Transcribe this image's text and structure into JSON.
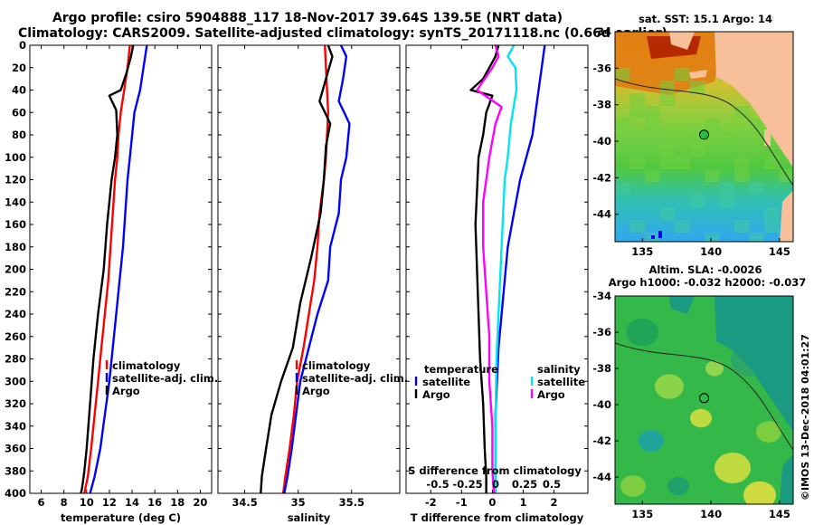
{
  "header": {
    "line1": "Argo profile: csiro 5904888_117 18-Nov-2017 39.64S 139.5E (NRT data)",
    "line2": "Climatology: CARS2009. Satellite-adjusted climatology: synTS_20171118.nc (0.66d earlier)"
  },
  "maps": {
    "sst_title": "sat. SST: 15.1 Argo: 14",
    "sla_title1": "Altim. SLA: -0.0026",
    "sla_title2": "Argo h1000: -0.032 h2000: -0.037",
    "credit": "©IMOS 13-Dec-2018 04:01:27"
  },
  "colors": {
    "climatology": "#ff0000",
    "satellite": "#0000ff",
    "argo": "#000000",
    "s_satellite": "#00e5ee",
    "s_argo": "#ff00ff"
  },
  "chart_data": [
    {
      "type": "line",
      "name": "temperature",
      "xlabel": "temperature (deg C)",
      "ylabel": "",
      "xlim": [
        5,
        21
      ],
      "ylim": [
        400,
        0
      ],
      "xticks": [
        6,
        8,
        10,
        12,
        14,
        16,
        18,
        20
      ],
      "xtick_labels": [
        "6",
        "8",
        "10",
        "12",
        "14",
        "16",
        "18",
        "20"
      ],
      "yticks": [
        0,
        20,
        40,
        60,
        80,
        100,
        120,
        140,
        160,
        180,
        200,
        220,
        240,
        260,
        280,
        300,
        320,
        340,
        360,
        380,
        400
      ],
      "ytick_labels": [
        "0",
        "20",
        "40",
        "60",
        "80",
        "100",
        "120",
        "140",
        "160",
        "180",
        "200",
        "220",
        "240",
        "260",
        "280",
        "300",
        "320",
        "340",
        "360",
        "380",
        "400"
      ],
      "legend": [
        "climatology",
        "satellite-adj. clim.",
        "Argo"
      ],
      "series": [
        {
          "name": "climatology",
          "color": "#ff0000",
          "x": [
            13.8,
            13.6,
            13.3,
            13.0,
            12.8,
            12.7,
            12.5,
            12.3,
            12.1,
            11.9,
            11.6,
            11.3,
            11.0,
            10.7,
            10.4,
            10.1,
            9.8
          ],
          "y": [
            0,
            20,
            40,
            60,
            80,
            100,
            120,
            150,
            180,
            210,
            240,
            270,
            300,
            330,
            360,
            385,
            400
          ]
        },
        {
          "name": "satellite-adj. clim.",
          "color": "#0000ff",
          "x": [
            15.3,
            15.0,
            14.7,
            14.2,
            14.0,
            13.8,
            13.6,
            13.4,
            13.2,
            12.9,
            12.6,
            12.3,
            12.0,
            11.6,
            11.2,
            10.7,
            10.3
          ],
          "y": [
            0,
            20,
            40,
            60,
            80,
            100,
            120,
            150,
            180,
            210,
            240,
            270,
            300,
            330,
            360,
            385,
            400
          ]
        },
        {
          "name": "Argo",
          "color": "#000000",
          "x": [
            14.1,
            13.9,
            13.5,
            13.0,
            12.0,
            12.6,
            12.7,
            12.5,
            12.2,
            11.8,
            11.5,
            11.0,
            10.6,
            10.3,
            10.0,
            9.8,
            9.6,
            9.5
          ],
          "y": [
            0,
            10,
            25,
            40,
            45,
            58,
            80,
            100,
            120,
            160,
            200,
            240,
            280,
            320,
            360,
            380,
            395,
            400
          ]
        }
      ]
    },
    {
      "type": "line",
      "name": "salinity",
      "xlabel": "salinity",
      "ylabel": "",
      "xlim": [
        34.25,
        35.95
      ],
      "ylim": [
        400,
        0
      ],
      "xticks": [
        34.5,
        35,
        35.5
      ],
      "xtick_labels": [
        "34.5",
        "35",
        "35.5"
      ],
      "legend": [
        "climatology",
        "satellite-adj. clim.",
        "Argo"
      ],
      "series": [
        {
          "name": "climatology",
          "color": "#ff0000",
          "x": [
            35.25,
            35.26,
            35.27,
            35.28,
            35.27,
            35.26,
            35.24,
            35.2,
            35.18,
            35.15,
            35.1,
            35.05,
            34.99,
            34.96,
            34.92,
            34.88,
            34.86
          ],
          "y": [
            0,
            20,
            40,
            60,
            80,
            100,
            120,
            150,
            180,
            210,
            240,
            270,
            300,
            330,
            360,
            385,
            400
          ]
        },
        {
          "name": "satellite-adj. clim.",
          "color": "#0000ff",
          "x": [
            35.4,
            35.45,
            35.42,
            35.38,
            35.48,
            35.45,
            35.4,
            35.38,
            35.3,
            35.28,
            35.18,
            35.1,
            35.02,
            34.98,
            34.94,
            34.9,
            34.87
          ],
          "y": [
            0,
            10,
            30,
            50,
            70,
            100,
            120,
            150,
            180,
            210,
            240,
            270,
            300,
            330,
            360,
            385,
            400
          ]
        },
        {
          "name": "Argo",
          "color": "#000000",
          "x": [
            35.28,
            35.32,
            35.26,
            35.2,
            35.24,
            35.3,
            35.26,
            35.24,
            35.21,
            35.12,
            35.02,
            34.95,
            34.84,
            34.75,
            34.7,
            34.66,
            34.65
          ],
          "y": [
            0,
            10,
            30,
            50,
            58,
            70,
            90,
            120,
            150,
            190,
            230,
            270,
            300,
            330,
            360,
            385,
            400
          ]
        }
      ]
    },
    {
      "type": "line",
      "name": "difference",
      "xlabel": "T difference from climatology",
      "ylabel": "",
      "xlim": [
        -2.8,
        3.1
      ],
      "ylim": [
        400,
        0
      ],
      "xticks": [
        -2,
        -1,
        0,
        1,
        2
      ],
      "xtick_labels": [
        "-2",
        "-1",
        "0",
        "1",
        "2"
      ],
      "secondary_axis_label": "S difference from climatology",
      "secondary_ticks": [
        -0.5,
        -0.25,
        0,
        0.25,
        0.5
      ],
      "secondary_tick_labels": [
        "-0.5",
        "-0.25",
        "0",
        "0.25",
        "0.5"
      ],
      "legend_title_left": "temperature",
      "legend_title_right": "salinity",
      "legend": [
        "satellite",
        "Argo"
      ],
      "series": [
        {
          "name": "T satellite",
          "color": "#0000ff",
          "x": [
            1.7,
            1.6,
            1.5,
            1.4,
            1.3,
            1.1,
            0.9,
            0.7,
            0.5,
            0.4,
            0.3,
            0.2,
            0.15,
            0.1,
            0.1,
            0.1
          ],
          "y": [
            0,
            20,
            40,
            60,
            80,
            100,
            120,
            150,
            180,
            210,
            240,
            270,
            300,
            330,
            360,
            400
          ]
        },
        {
          "name": "T Argo",
          "color": "#000000",
          "x": [
            0.2,
            0.1,
            -0.3,
            -0.7,
            0.0,
            -0.2,
            -0.3,
            -0.45,
            -0.5,
            -0.55,
            -0.5,
            -0.45,
            -0.4,
            -0.3,
            -0.25,
            -0.2,
            -0.2
          ],
          "y": [
            0,
            10,
            30,
            40,
            45,
            60,
            80,
            100,
            130,
            160,
            200,
            240,
            280,
            320,
            360,
            385,
            400
          ]
        },
        {
          "name": "S satellite",
          "color": "#00e5ee",
          "x": [
            0.7,
            0.5,
            0.75,
            0.78,
            0.6,
            0.5,
            0.4,
            0.35,
            0.3,
            0.25,
            0.2,
            0.15,
            0.12,
            0.1,
            0.1
          ],
          "y": [
            0,
            10,
            20,
            40,
            70,
            100,
            120,
            150,
            180,
            210,
            240,
            270,
            300,
            340,
            400
          ]
        },
        {
          "name": "S Argo",
          "color": "#ff00ff",
          "x": [
            0.1,
            0.2,
            0.0,
            -0.5,
            0.3,
            0.1,
            -0.1,
            -0.3,
            -0.3,
            -0.2,
            -0.1,
            -0.1,
            0.0,
            0.0,
            0.05
          ],
          "y": [
            0,
            10,
            20,
            40,
            55,
            70,
            100,
            140,
            180,
            220,
            260,
            300,
            340,
            380,
            400
          ]
        }
      ]
    },
    {
      "type": "heatmap",
      "name": "sst_map",
      "title": "sat. SST: 15.1 Argo: 14",
      "xlim": [
        133,
        146
      ],
      "ylim": [
        -45.5,
        -34
      ],
      "xticks": [
        135,
        140,
        145
      ],
      "xtick_labels": [
        "135",
        "140",
        "145"
      ],
      "yticks": [
        -34,
        -36,
        -38,
        -40,
        -42,
        -44
      ],
      "ytick_labels": [
        "-34",
        "-36",
        "-38",
        "-40",
        "-42",
        "-44"
      ],
      "float_position": [
        139.5,
        -39.64
      ]
    },
    {
      "type": "heatmap",
      "name": "sla_map",
      "title": "Altim. SLA: -0.0026",
      "xlim": [
        133,
        146
      ],
      "ylim": [
        -45.5,
        -34
      ],
      "xticks": [
        135,
        140,
        145
      ],
      "xtick_labels": [
        "135",
        "140",
        "145"
      ],
      "yticks": [
        -34,
        -36,
        -38,
        -40,
        -42,
        -44
      ],
      "ytick_labels": [
        "-34",
        "-36",
        "-38",
        "-40",
        "-42",
        "-44"
      ],
      "float_position": [
        139.5,
        -39.64
      ]
    }
  ]
}
